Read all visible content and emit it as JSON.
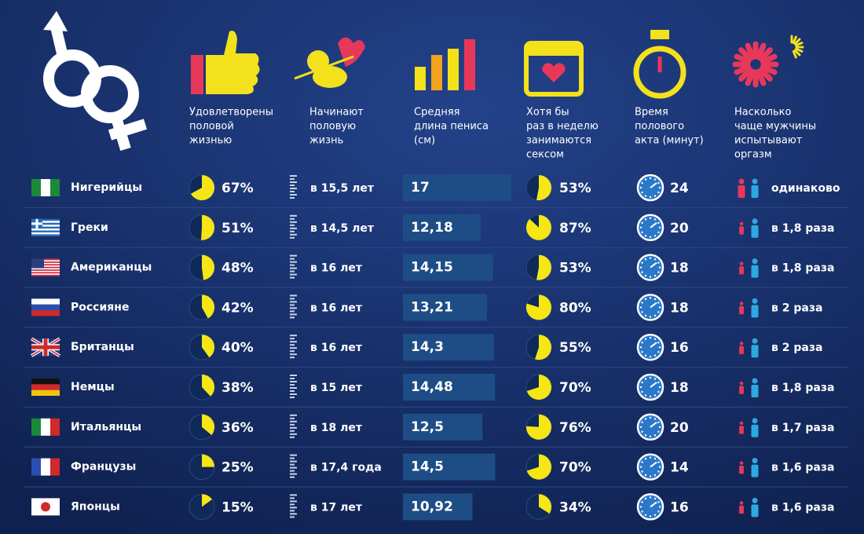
{
  "headers": [
    [
      "Удовлетворены",
      "половой",
      "жизнью"
    ],
    [
      "Начинают",
      "половую",
      "жизнь"
    ],
    [
      "Средняя",
      "длина пениса",
      "(см)"
    ],
    [
      "Хотя бы",
      "раз в неделю",
      "занимаются",
      "сексом"
    ],
    [
      "Время",
      "полового",
      "акта (минут)"
    ],
    [
      "Насколько",
      "чаще мужчины",
      "испытывают",
      "оргазм"
    ]
  ],
  "rows": [
    {
      "name": "Нигерийцы",
      "satisfied": {
        "value": 67,
        "label": "67%"
      },
      "start": "в 15,5 лет",
      "length": {
        "value": 17,
        "label": "17"
      },
      "weekly": {
        "value": 53,
        "label": "53%"
      },
      "duration": 24,
      "orgasm": "одинаково"
    },
    {
      "name": "Греки",
      "satisfied": {
        "value": 51,
        "label": "51%"
      },
      "start": "в 14,5 лет",
      "length": {
        "value": 12.18,
        "label": "12,18"
      },
      "weekly": {
        "value": 87,
        "label": "87%"
      },
      "duration": 20,
      "orgasm": "в 1,8 раза"
    },
    {
      "name": "Американцы",
      "satisfied": {
        "value": 48,
        "label": "48%"
      },
      "start": "в 16 лет",
      "length": {
        "value": 14.15,
        "label": "14,15"
      },
      "weekly": {
        "value": 53,
        "label": "53%"
      },
      "duration": 18,
      "orgasm": "в 1,8 раза"
    },
    {
      "name": "Россияне",
      "satisfied": {
        "value": 42,
        "label": "42%"
      },
      "start": "в 16 лет",
      "length": {
        "value": 13.21,
        "label": "13,21"
      },
      "weekly": {
        "value": 80,
        "label": "80%"
      },
      "duration": 18,
      "orgasm": "в 2 раза"
    },
    {
      "name": "Британцы",
      "satisfied": {
        "value": 40,
        "label": "40%"
      },
      "start": "в 16 лет",
      "length": {
        "value": 14.3,
        "label": "14,3"
      },
      "weekly": {
        "value": 55,
        "label": "55%"
      },
      "duration": 16,
      "orgasm": "в 2 раза"
    },
    {
      "name": "Немцы",
      "satisfied": {
        "value": 38,
        "label": "38%"
      },
      "start": "в 15 лет",
      "length": {
        "value": 14.48,
        "label": "14,48"
      },
      "weekly": {
        "value": 70,
        "label": "70%"
      },
      "duration": 18,
      "orgasm": "в 1,8 раза"
    },
    {
      "name": "Итальянцы",
      "satisfied": {
        "value": 36,
        "label": "36%"
      },
      "start": "в 18 лет",
      "length": {
        "value": 12.5,
        "label": "12,5"
      },
      "weekly": {
        "value": 76,
        "label": "76%"
      },
      "duration": 20,
      "orgasm": "в 1,7 раза"
    },
    {
      "name": "Французы",
      "satisfied": {
        "value": 25,
        "label": "25%"
      },
      "start": "в 17,4 года",
      "length": {
        "value": 14.5,
        "label": "14,5"
      },
      "weekly": {
        "value": 70,
        "label": "70%"
      },
      "duration": 14,
      "orgasm": "в 1,6 раза"
    },
    {
      "name": "Японцы",
      "satisfied": {
        "value": 15,
        "label": "15%"
      },
      "start": "в 17 лет",
      "length": {
        "value": 10.92,
        "label": "10,92"
      },
      "weekly": {
        "value": 34,
        "label": "34%"
      },
      "duration": 16,
      "orgasm": "в 1,6 раза"
    }
  ]
}
